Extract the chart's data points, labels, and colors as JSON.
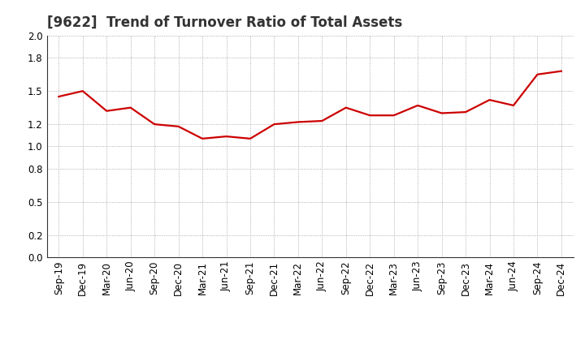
{
  "title": "[9622]  Trend of Turnover Ratio of Total Assets",
  "x_labels": [
    "Sep-19",
    "Dec-19",
    "Mar-20",
    "Jun-20",
    "Sep-20",
    "Dec-20",
    "Mar-21",
    "Jun-21",
    "Sep-21",
    "Dec-21",
    "Mar-22",
    "Jun-22",
    "Sep-22",
    "Dec-22",
    "Mar-23",
    "Jun-23",
    "Sep-23",
    "Dec-23",
    "Mar-24",
    "Jun-24",
    "Sep-24",
    "Dec-24"
  ],
  "values": [
    1.45,
    1.5,
    1.32,
    1.35,
    1.2,
    1.18,
    1.07,
    1.09,
    1.07,
    1.2,
    1.22,
    1.23,
    1.35,
    1.28,
    1.28,
    1.37,
    1.3,
    1.31,
    1.42,
    1.37,
    1.65,
    1.68
  ],
  "line_color": "#cc0000",
  "line_width": 1.6,
  "ylim": [
    0.0,
    2.0
  ],
  "yticks": [
    0.0,
    0.2,
    0.5,
    0.8,
    1.0,
    1.2,
    1.5,
    1.8,
    2.0
  ],
  "grid_color": "#999999",
  "background_color": "#ffffff",
  "title_fontsize": 12,
  "tick_fontsize": 8.5
}
